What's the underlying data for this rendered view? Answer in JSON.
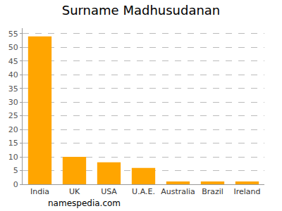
{
  "chart_data": {
    "type": "bar",
    "title": "Surname Madhusudanan",
    "categories": [
      "India",
      "UK",
      "USA",
      "U.A.E.",
      "Australia",
      "Brazil",
      "Ireland"
    ],
    "values": [
      54,
      10,
      8,
      6,
      1,
      1,
      1
    ],
    "color": "#ffa500",
    "ylim": [
      0,
      57
    ],
    "yticks": [
      0,
      5,
      10,
      15,
      20,
      25,
      30,
      35,
      40,
      45,
      50,
      55
    ],
    "grid": true,
    "annotations": [
      "namespedia.com"
    ]
  }
}
